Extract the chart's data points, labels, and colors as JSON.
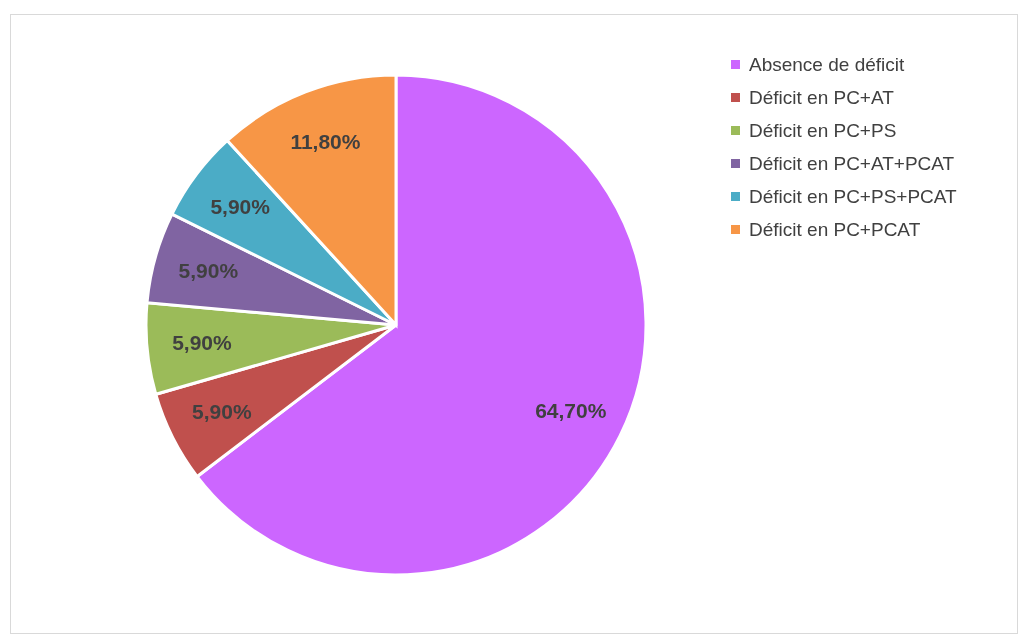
{
  "chart_data": {
    "type": "pie",
    "categories": [
      "Absence de déficit",
      "Déficit en PC+AT",
      "Déficit en PC+PS",
      "Déficit en PC+AT+PCAT",
      "Déficit en PC+PS+PCAT",
      "Déficit en PC+PCAT"
    ],
    "values": [
      64.7,
      5.9,
      5.9,
      5.9,
      5.9,
      11.8
    ],
    "colors": [
      "#cc66ff",
      "#c0504d",
      "#9bbb59",
      "#8064a2",
      "#4bacc6",
      "#f79646"
    ],
    "value_labels": [
      "64,70%",
      "5,90%",
      "5,90%",
      "5,90%",
      "5,90%",
      "11,80%"
    ],
    "legend": "right"
  }
}
